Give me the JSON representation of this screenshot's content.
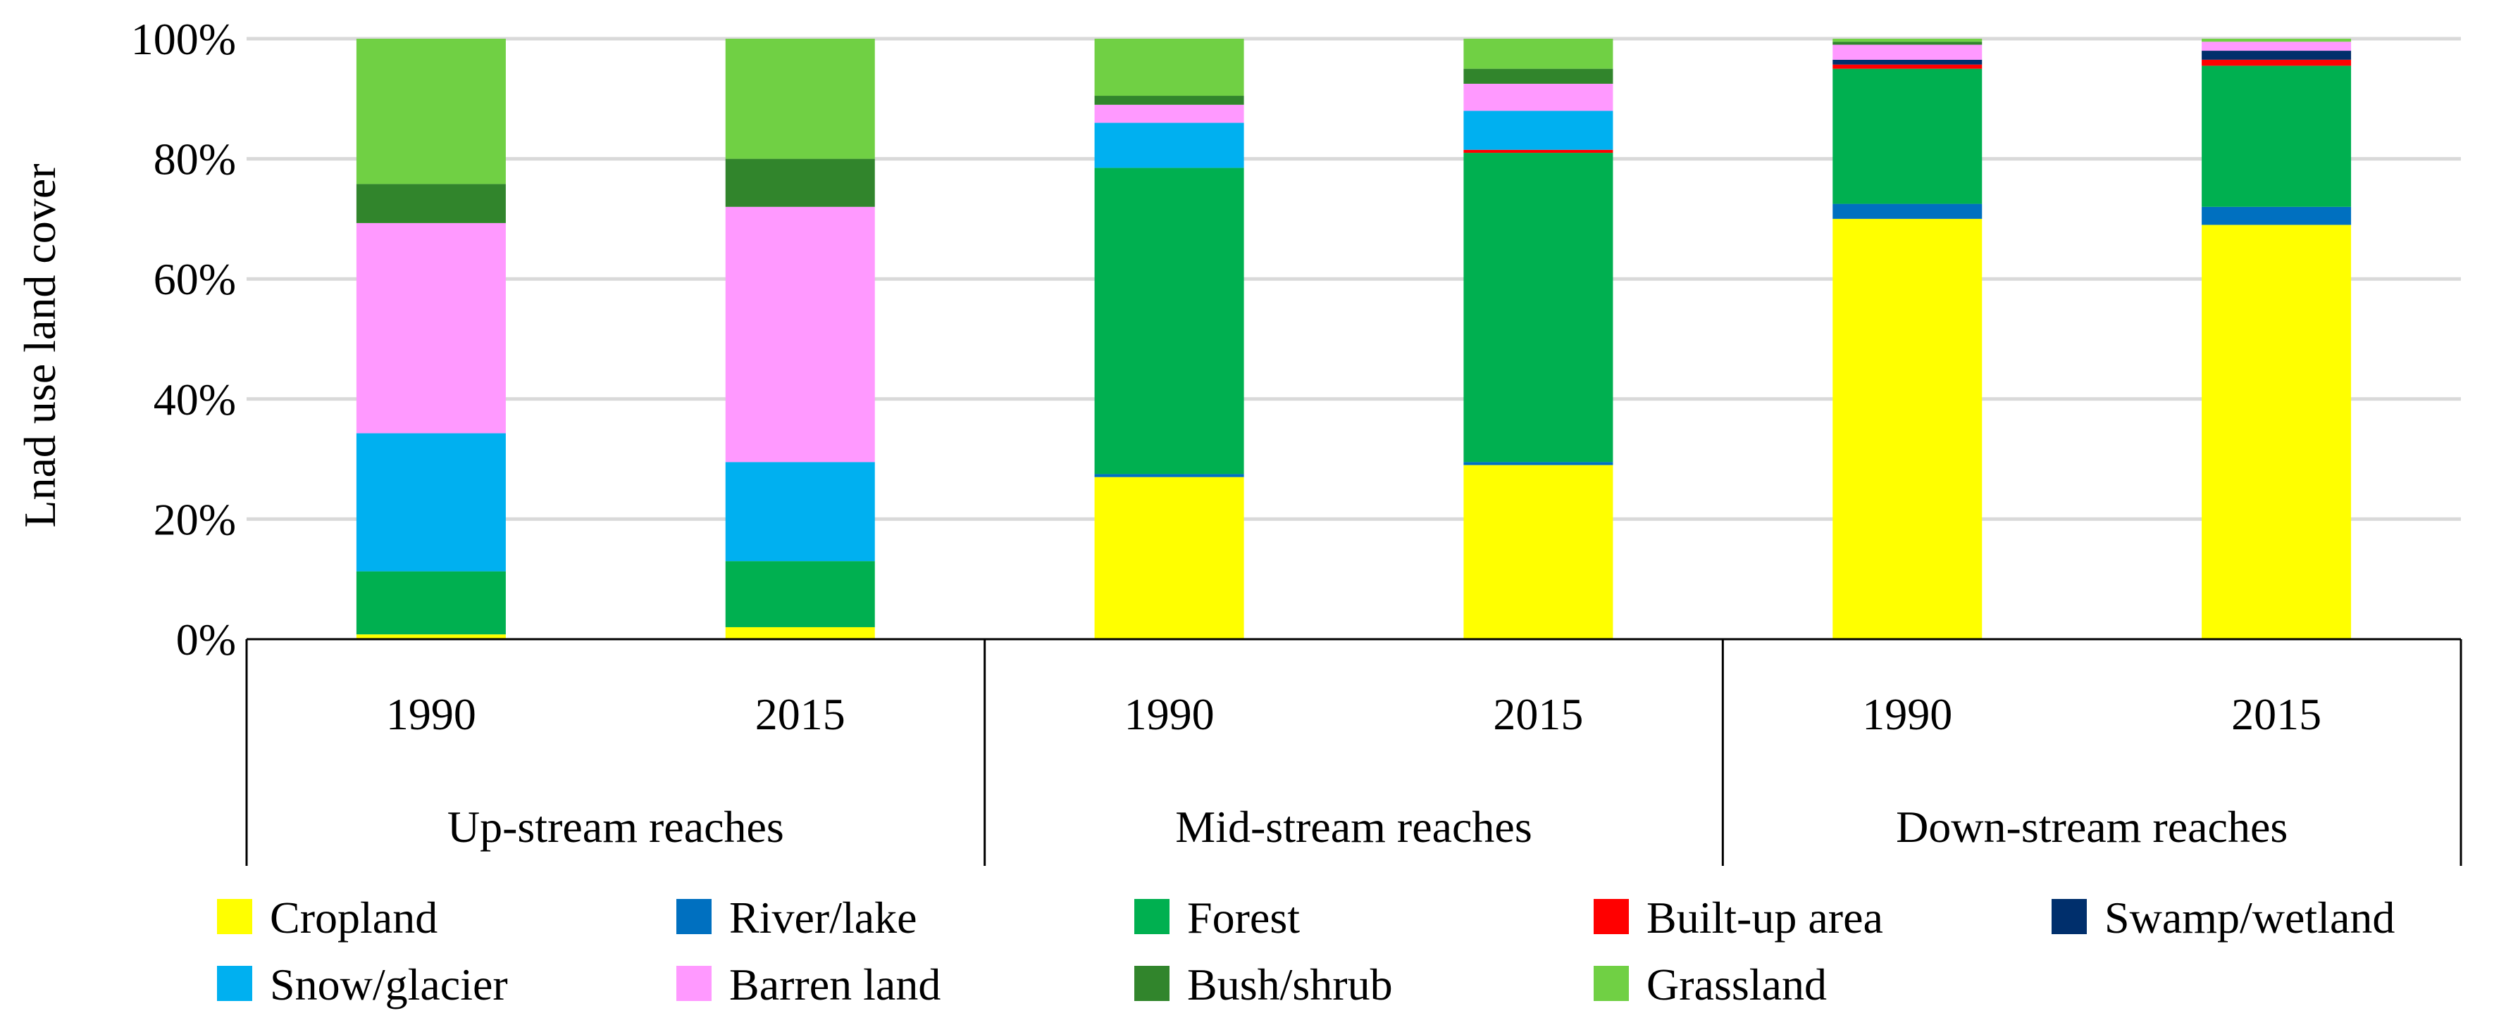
{
  "chart_data": {
    "type": "bar",
    "stacked": true,
    "title": "",
    "xlabel": "",
    "ylabel": "Lnad use land cover",
    "ylim": [
      0,
      100
    ],
    "yticks": [
      "0%",
      "20%",
      "40%",
      "60%",
      "80%",
      "100%"
    ],
    "grid": true,
    "legend_position": "bottom",
    "groups": [
      "Up-stream reaches",
      "Mid-stream reaches",
      "Down-stream reaches"
    ],
    "categories": [
      "1990",
      "2015",
      "1990",
      "2015",
      "1990",
      "2015"
    ],
    "series": [
      {
        "name": "Cropland",
        "color": "#FFFF00",
        "values": [
          0.8,
          2.0,
          27.0,
          29.0,
          70.0,
          69.0
        ]
      },
      {
        "name": "River/lake",
        "color": "#0070C0",
        "values": [
          0.0,
          0.0,
          0.5,
          0.5,
          2.5,
          3.0
        ]
      },
      {
        "name": "Forest",
        "color": "#00B050",
        "values": [
          10.5,
          11.0,
          51.0,
          51.5,
          22.5,
          23.5
        ]
      },
      {
        "name": "Built-up area",
        "color": "#FF0000",
        "values": [
          0.0,
          0.0,
          0.0,
          0.5,
          0.7,
          1.0
        ]
      },
      {
        "name": "Swamp/wetland",
        "color": "#002F6C",
        "values": [
          0.0,
          0.0,
          0.0,
          0.0,
          0.8,
          1.5
        ]
      },
      {
        "name": "Snow/glacier",
        "color": "#00B0F0",
        "values": [
          23.0,
          16.5,
          7.5,
          6.5,
          0.0,
          0.0
        ]
      },
      {
        "name": "Barren land",
        "color": "#FF99FF",
        "values": [
          35.0,
          42.5,
          3.0,
          4.5,
          2.5,
          1.5
        ]
      },
      {
        "name": "Bush/shrub",
        "color": "#31852C",
        "values": [
          6.5,
          8.0,
          1.5,
          2.5,
          0.5,
          0.0
        ]
      },
      {
        "name": "Grassland",
        "color": "#70D044",
        "values": [
          24.2,
          20.0,
          9.5,
          5.0,
          0.5,
          0.5
        ]
      }
    ]
  }
}
